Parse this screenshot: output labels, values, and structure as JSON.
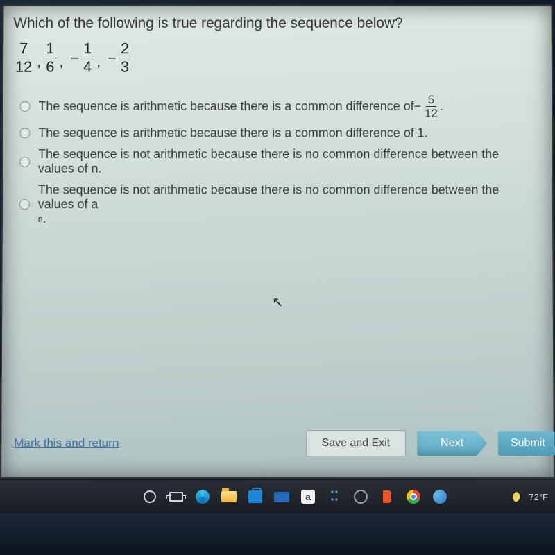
{
  "question": {
    "prompt": "Which of the following is true regarding the sequence below?",
    "sequence": [
      {
        "num": "7",
        "den": "12"
      },
      {
        "num": "1",
        "den": "6"
      },
      {
        "neg": true,
        "num": "1",
        "den": "4"
      },
      {
        "neg": true,
        "num": "2",
        "den": "3"
      }
    ]
  },
  "options": [
    {
      "pre": "The sequence is arithmetic because there is a common difference of ",
      "neg": "−",
      "frac": {
        "num": "5",
        "den": "12"
      },
      "post": "."
    },
    {
      "text": "The sequence is arithmetic because there is a common difference of 1."
    },
    {
      "text": "The sequence is not arithmetic because there is no common difference between the values of n."
    },
    {
      "pre": "The sequence is not arithmetic because there is no common difference between the values of a",
      "sub": "n",
      "post": "."
    }
  ],
  "footer": {
    "mark": "Mark this and return",
    "save": "Save and Exit",
    "next": "Next",
    "submit": "Submit"
  },
  "taskbar": {
    "a_label": "a",
    "dropbox_glyph": "⠭",
    "temp": "72°F"
  }
}
